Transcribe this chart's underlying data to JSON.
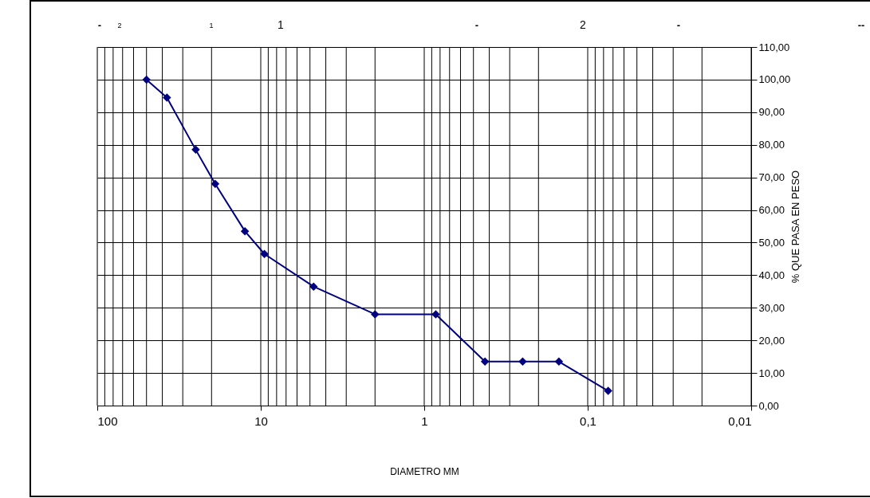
{
  "chart_data": {
    "type": "line",
    "xlabel": "DIAMETRO MM",
    "ylabel": "% QUE PASA EN PESO",
    "x": [
      50,
      37.5,
      25,
      19,
      12.5,
      9.5,
      4.75,
      2,
      0.85,
      0.425,
      0.25,
      0.15,
      0.075
    ],
    "series": [
      {
        "color": "#000080",
        "values": [
          100,
          94.5,
          78.5,
          68,
          53.5,
          46.5,
          36.5,
          28,
          28,
          13.5,
          13.5,
          13.5,
          4.5
        ]
      }
    ],
    "xlim": [
      100,
      0.01
    ],
    "log": "x",
    "xticks": [
      100,
      10,
      1,
      {
        "value": 0.1,
        "label": "0,1"
      },
      {
        "value": 0.01,
        "label": "0,01"
      }
    ],
    "ylim": [
      0,
      110
    ],
    "yticks": [
      {
        "value": 0,
        "label": "0,00"
      },
      {
        "value": 10,
        "label": "10,00"
      },
      {
        "value": 20,
        "label": "20,00"
      },
      {
        "value": 30,
        "label": "30,00"
      },
      {
        "value": 40,
        "label": "40,00"
      },
      {
        "value": 50,
        "label": "50,00"
      },
      {
        "value": 60,
        "label": "60,00"
      },
      {
        "value": 70,
        "label": "70,00"
      },
      {
        "value": 80,
        "label": "80,00"
      },
      {
        "value": 90,
        "label": "90,00"
      },
      {
        "value": 100,
        "label": "100,00"
      },
      {
        "value": 110,
        "label": "110,00"
      }
    ],
    "annotations": [
      "-",
      "2",
      "1",
      "1",
      "-",
      "2",
      "-",
      "--"
    ],
    "grid": true,
    "marker": "diamond",
    "line_style": "solid"
  }
}
